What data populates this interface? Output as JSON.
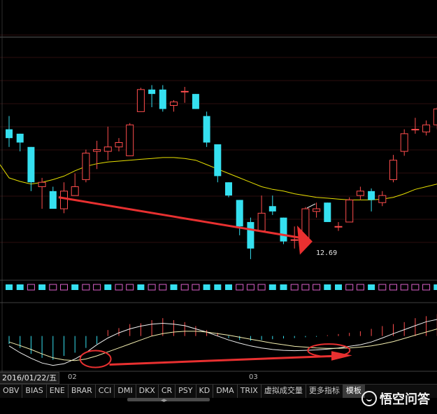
{
  "colors": {
    "up": "#ff4d4d",
    "down": "#35e0f0",
    "ma": "#e8e000",
    "ma_light": "#f4efb0",
    "macd_line": "#f0f0f0",
    "annotation": "#e83030",
    "grid": "#5a1c1c"
  },
  "price_label": "12.69",
  "date_label": "2016/01/22/五",
  "month_labels": [
    "02",
    "03"
  ],
  "tabs": [
    "OBV",
    "BIAS",
    "ENE",
    "BRAR",
    "CCI",
    "DMI",
    "DKX",
    "CR",
    "PSY",
    "KD",
    "DMA",
    "TRIX",
    "虚拟成交量",
    "更多指标",
    "模板"
  ],
  "active_tab": "模板",
  "watermark": "悟空问答",
  "chart_data": {
    "type": "candlestick",
    "candles": [
      {
        "o": 13.55,
        "c": 13.45,
        "h": 13.7,
        "l": 13.35
      },
      {
        "o": 13.5,
        "c": 13.4,
        "h": 13.5,
        "l": 13.3
      },
      {
        "o": 13.35,
        "c": 12.95,
        "h": 13.35,
        "l": 12.85
      },
      {
        "o": 12.9,
        "c": 12.95,
        "h": 13.0,
        "l": 12.65
      },
      {
        "o": 12.85,
        "c": 12.65,
        "h": 12.9,
        "l": 12.65
      },
      {
        "o": 12.65,
        "c": 12.85,
        "h": 12.95,
        "l": 12.6
      },
      {
        "o": 12.8,
        "c": 12.9,
        "h": 13.05,
        "l": 12.8
      },
      {
        "o": 12.98,
        "c": 13.28,
        "h": 13.32,
        "l": 12.95
      },
      {
        "o": 13.3,
        "c": 13.32,
        "h": 13.42,
        "l": 13.1
      },
      {
        "o": 13.3,
        "c": 13.35,
        "h": 13.58,
        "l": 13.2
      },
      {
        "o": 13.35,
        "c": 13.4,
        "h": 13.45,
        "l": 13.3
      },
      {
        "o": 13.25,
        "c": 13.6,
        "h": 13.62,
        "l": 13.25
      },
      {
        "o": 13.75,
        "c": 14.0,
        "h": 14.02,
        "l": 13.75
      },
      {
        "o": 14.0,
        "c": 13.95,
        "h": 14.05,
        "l": 13.8
      },
      {
        "o": 14.0,
        "c": 13.78,
        "h": 14.05,
        "l": 13.75
      },
      {
        "o": 13.82,
        "c": 13.86,
        "h": 13.88,
        "l": 13.75
      },
      {
        "o": 13.98,
        "c": 13.98,
        "h": 14.03,
        "l": 13.85
      },
      {
        "o": 13.95,
        "c": 13.78,
        "h": 13.95,
        "l": 13.78
      },
      {
        "o": 13.7,
        "c": 13.4,
        "h": 13.75,
        "l": 13.35
      },
      {
        "o": 13.38,
        "c": 13.02,
        "h": 13.38,
        "l": 12.95
      },
      {
        "o": 12.95,
        "c": 12.8,
        "h": 12.95,
        "l": 12.78
      },
      {
        "o": 12.75,
        "c": 12.45,
        "h": 12.75,
        "l": 12.35
      },
      {
        "o": 12.5,
        "c": 12.2,
        "h": 12.55,
        "l": 12.08
      },
      {
        "o": 12.4,
        "c": 12.6,
        "h": 12.8,
        "l": 12.4
      },
      {
        "o": 12.68,
        "c": 12.62,
        "h": 12.8,
        "l": 12.58
      },
      {
        "o": 12.55,
        "c": 12.28,
        "h": 12.55,
        "l": 12.25
      },
      {
        "o": 12.3,
        "c": 12.3,
        "h": 12.45,
        "l": 12.2
      },
      {
        "o": 12.25,
        "c": 12.65,
        "h": 12.67,
        "l": 12.25
      },
      {
        "o": 12.62,
        "c": 12.65,
        "h": 12.72,
        "l": 12.55
      },
      {
        "o": 12.72,
        "c": 12.5,
        "h": 12.72,
        "l": 12.5
      },
      {
        "o": 12.45,
        "c": 12.45,
        "h": 12.5,
        "l": 12.4
      },
      {
        "o": 12.5,
        "c": 12.75,
        "h": 12.78,
        "l": 12.5
      },
      {
        "o": 12.8,
        "c": 12.85,
        "h": 12.9,
        "l": 12.75
      },
      {
        "o": 12.85,
        "c": 12.75,
        "h": 12.88,
        "l": 12.62
      },
      {
        "o": 12.72,
        "c": 12.8,
        "h": 12.85,
        "l": 12.68
      },
      {
        "o": 12.98,
        "c": 13.2,
        "h": 13.26,
        "l": 12.95
      },
      {
        "o": 13.3,
        "c": 13.5,
        "h": 13.55,
        "l": 13.25
      },
      {
        "o": 13.55,
        "c": 13.55,
        "h": 13.68,
        "l": 13.5
      },
      {
        "o": 13.52,
        "c": 13.6,
        "h": 13.65,
        "l": 13.48
      },
      {
        "o": 13.6,
        "c": 13.78,
        "h": 13.8,
        "l": 13.55
      }
    ],
    "ma": [
      13.0,
      12.96,
      12.93,
      12.95,
      12.98,
      13.02,
      13.08,
      13.13,
      13.16,
      13.18,
      13.19,
      13.2,
      13.21,
      13.22,
      13.23,
      13.23,
      13.22,
      13.2,
      13.15,
      13.1,
      13.05,
      13.0,
      12.95,
      12.9,
      12.87,
      12.85,
      12.82,
      12.8,
      12.78,
      12.77,
      12.76,
      12.75,
      12.75,
      12.75,
      12.76,
      12.78,
      12.82,
      12.87,
      12.9,
      12.93
    ],
    "low_marker": 12.69,
    "y_range": [
      12.0,
      14.3
    ],
    "volume_up": [
      false,
      false,
      true,
      false,
      true,
      true,
      false,
      true,
      true,
      false,
      true,
      true,
      false,
      true,
      true,
      false,
      true,
      true,
      false,
      false,
      false,
      true,
      true,
      true,
      false,
      false,
      true,
      true,
      true,
      false,
      false,
      true,
      true,
      false,
      true,
      true,
      true,
      true,
      true,
      false
    ],
    "macd_hist": [
      -0.2,
      -0.3,
      -0.45,
      -0.55,
      -0.6,
      -0.5,
      -0.42,
      -0.3,
      -0.2,
      0.15,
      0.2,
      0.3,
      0.32,
      0.4,
      0.45,
      0.4,
      0.35,
      0.25,
      0.15,
      0.08,
      -0.05,
      -0.1,
      -0.12,
      -0.1,
      -0.08,
      -0.06,
      -0.05,
      -0.03,
      -0.02,
      0.02,
      0.05,
      0.08,
      0.12,
      0.18,
      0.25,
      0.3,
      0.35,
      0.45,
      0.5,
      0.55
    ],
    "macd_dif": [
      -0.25,
      -0.42,
      -0.56,
      -0.68,
      -0.74,
      -0.7,
      -0.58,
      -0.42,
      -0.22,
      -0.05,
      0.08,
      0.18,
      0.25,
      0.3,
      0.32,
      0.3,
      0.26,
      0.18,
      0.1,
      0.0,
      -0.1,
      -0.18,
      -0.25,
      -0.3,
      -0.34,
      -0.36,
      -0.37,
      -0.36,
      -0.35,
      -0.33,
      -0.3,
      -0.26,
      -0.22,
      -0.15,
      -0.05,
      0.06,
      0.16,
      0.26,
      0.36,
      0.42
    ],
    "macd_dea": [
      -0.15,
      -0.24,
      -0.34,
      -0.45,
      -0.55,
      -0.6,
      -0.62,
      -0.58,
      -0.5,
      -0.4,
      -0.3,
      -0.2,
      -0.1,
      0.0,
      0.06,
      0.1,
      0.12,
      0.12,
      0.1,
      0.06,
      0.02,
      -0.03,
      -0.08,
      -0.13,
      -0.18,
      -0.22,
      -0.26,
      -0.28,
      -0.3,
      -0.31,
      -0.31,
      -0.3,
      -0.28,
      -0.25,
      -0.2,
      -0.14,
      -0.06,
      0.02,
      0.1,
      0.18
    ],
    "macd_range": [
      -0.8,
      0.7
    ]
  }
}
